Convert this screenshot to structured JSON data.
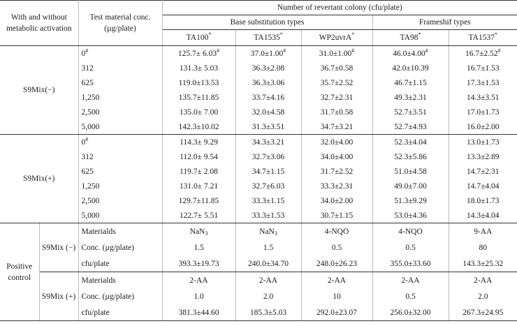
{
  "header": {
    "activation": "With and without metabolic activation",
    "conc": "Test material conc. (µg/plate)",
    "number": "Number of revertant colony (cfu/plate)",
    "base_group": "Base substitution types",
    "frame_group": "Frameshif types",
    "strains": [
      {
        "name": "TA100",
        "mark": "*"
      },
      {
        "name": "TA1535",
        "mark": "*"
      },
      {
        "name": "WP2uvrA",
        "mark": "*"
      },
      {
        "name": "TA98",
        "mark": "*"
      },
      {
        "name": "TA1537",
        "mark": "*"
      }
    ]
  },
  "s9_minus": {
    "label": "S9Mix(−)",
    "rows": [
      {
        "conc": "0",
        "mark": "#",
        "vals": [
          "125.7± 6.03",
          "37.0±1.00",
          "31.0±1.00",
          "46.0±4.00",
          "16.7±2.52"
        ],
        "val_marks": [
          "#",
          "#",
          "#",
          "#",
          "#"
        ]
      },
      {
        "conc": "312",
        "vals": [
          "131.3± 5.03",
          "36.3±2.08",
          "36.7±0.58",
          "42.0±10.39",
          "16.7±1.53"
        ]
      },
      {
        "conc": "625",
        "vals": [
          "119.0±13.53",
          "36.3±3.06",
          "35.7±2.52",
          "46.7±1.15",
          "17.3±1.53"
        ]
      },
      {
        "conc": "1,250",
        "vals": [
          "135.7±11.85",
          "33.7±4.16",
          "32.7±2.31",
          "49.3±2.31",
          "14.3±3.51"
        ]
      },
      {
        "conc": "2,500",
        "vals": [
          "135.0± 7.00",
          "32.0±4.58",
          "31.7±0.58",
          "52.7±3.51",
          "17.0±1.73"
        ]
      },
      {
        "conc": "5,000",
        "vals": [
          "142.3±10.02",
          "31.3±3.51",
          "34.7±3.21",
          "52.7±4.93",
          "16.0±2.00"
        ]
      }
    ]
  },
  "s9_plus": {
    "label": "S9Mix(+)",
    "rows": [
      {
        "conc": "0",
        "mark": "#",
        "vals": [
          "114.3± 9.29",
          "34.3±3.21",
          "32.0±4.00",
          "52.3±4.04",
          "13.0±1.73"
        ]
      },
      {
        "conc": "312",
        "vals": [
          "112.0± 9.54",
          "32.7±3.06",
          "34.0±4.00",
          "52.3±5.86",
          "13.3±2.89"
        ]
      },
      {
        "conc": "625",
        "vals": [
          "119.7± 2.08",
          "34.7±1.15",
          "31.7±2.52",
          "51.0±4.58",
          "14.7±2.31"
        ]
      },
      {
        "conc": "1,250",
        "vals": [
          "131.0± 7.21",
          "32.7±6.03",
          "33.3±2.31",
          "49.0±7.00",
          "14.7±4.04"
        ]
      },
      {
        "conc": "2,500",
        "vals": [
          "129.7±11.85",
          "33.3±1.15",
          "34.0±2.00",
          "51.3±9.29",
          "18.0±1.73"
        ]
      },
      {
        "conc": "5,000",
        "vals": [
          "122.7± 5.51",
          "33.3±1.53",
          "30.7±1.15",
          "53.0±4.36",
          "14.3±4.04"
        ]
      }
    ]
  },
  "positive": {
    "label": "Positive control",
    "minus": {
      "label": "S9Mix (−)",
      "materials_label": "Materialds",
      "conc_label": "Conc. (µg/plate)",
      "cfu_label": "cfu/plate",
      "materials": [
        "NaN",
        "NaN",
        "4-NQO",
        "4-NQO",
        "9-AA"
      ],
      "material_subs": [
        "3",
        "3",
        "",
        "",
        ""
      ],
      "concs": [
        "1.5",
        "1.5",
        "0.5",
        "0.5",
        "80"
      ],
      "cfu": [
        "393.3±19.73",
        "240.0±34.70",
        "248.0±26.23",
        "355.0±33.60",
        "143.3±25.32"
      ]
    },
    "plus": {
      "label": "S9Mix (+)",
      "materials_label": "Materialds",
      "conc_label": "Conc. (µg/plate)",
      "cfu_label": "cfu/plate",
      "materials": [
        "2-AA",
        "2-AA",
        "2-AA",
        "2-AA",
        "2-AA"
      ],
      "concs": [
        "1.0",
        "2.0",
        "10",
        "0.5",
        "2.0"
      ],
      "cfu": [
        "381.3±44.60",
        "185.3±5.03",
        "292.0±23.07",
        "256.0±32.00",
        "267.3±24.95"
      ]
    }
  }
}
